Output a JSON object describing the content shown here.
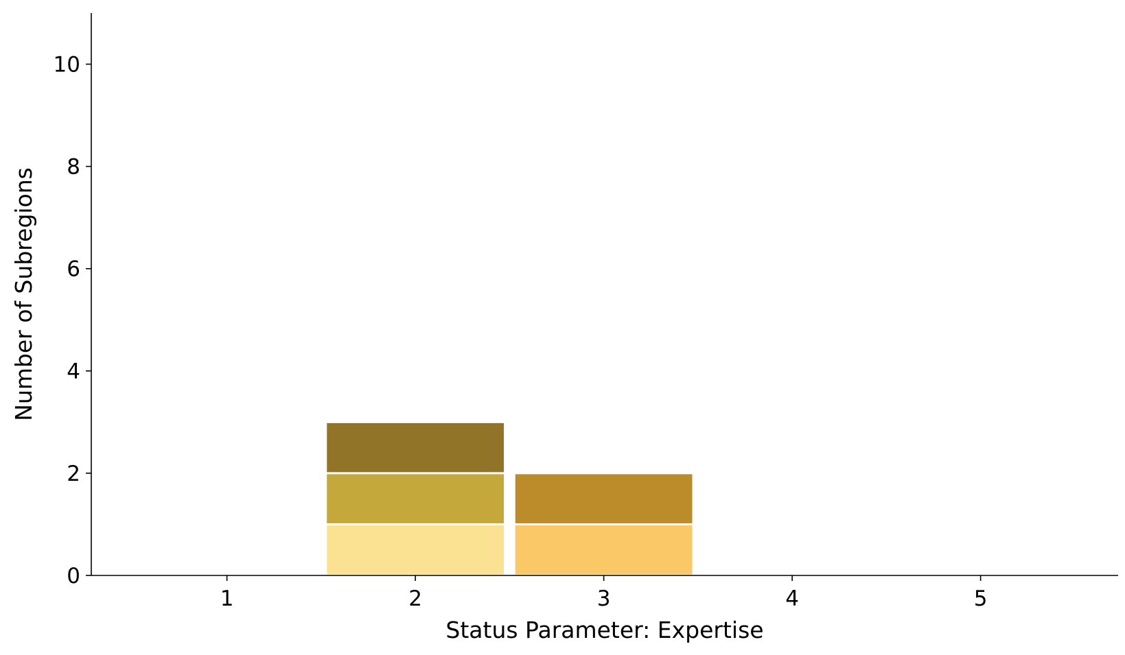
{
  "chart_data": {
    "type": "bar",
    "stacked": true,
    "xlabel": "Status Parameter: Expertise",
    "ylabel": "Number of Subregions",
    "x_ticks": [
      1,
      2,
      3,
      4,
      5
    ],
    "y_ticks": [
      0,
      2,
      4,
      6,
      8,
      10
    ],
    "xlim": [
      0.28,
      5.73
    ],
    "ylim": [
      0,
      11
    ],
    "grid": false,
    "segments": [
      {
        "x": 2,
        "bottom": 0,
        "value": 1,
        "color": "#fbe293"
      },
      {
        "x": 2,
        "bottom": 1,
        "value": 1,
        "color": "#c5a83c"
      },
      {
        "x": 2,
        "bottom": 2,
        "value": 1,
        "color": "#927428"
      },
      {
        "x": 3,
        "bottom": 0,
        "value": 1,
        "color": "#fbc868"
      },
      {
        "x": 3,
        "bottom": 1,
        "value": 1,
        "color": "#bd8c2a"
      }
    ]
  }
}
